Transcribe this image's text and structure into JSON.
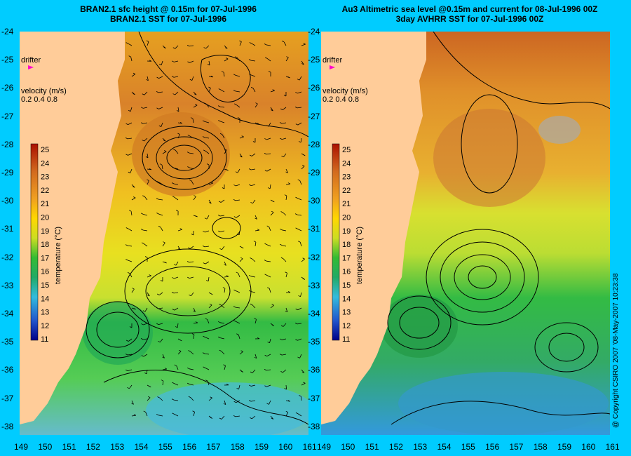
{
  "titles": {
    "left_line1": "BRAN2.1 sfc height @ 0.15m for 07-Jul-1996",
    "left_line2": "BRAN2.1 SST for 07-Jul-1996",
    "right_line1": "Au3 Altimetric sea level  @0.15m and current for 08-Jul-1996 00Z",
    "right_line2": "3day AVHRR SST for 07-Jul-1996 00Z"
  },
  "legend": {
    "drifter_label": "drifter",
    "velocity_title": "velocity (m/s)",
    "velocity_scale": "0.2 0.4 0.8",
    "colorbar_title": "temperature (°C)",
    "colorbar_ticks": [
      "25",
      "24",
      "23",
      "22",
      "21",
      "20",
      "19",
      "18",
      "17",
      "16",
      "15",
      "14",
      "13",
      "12",
      "11"
    ]
  },
  "axes": {
    "lat_ticks": [
      "-24",
      "-25",
      "-26",
      "-27",
      "-28",
      "-29",
      "-30",
      "-31",
      "-32",
      "-33",
      "-34",
      "-35",
      "-36",
      "-37",
      "-38"
    ],
    "lon_ticks_left": [
      "149",
      "150",
      "151",
      "152",
      "153",
      "154",
      "155",
      "156",
      "157",
      "158",
      "159",
      "160",
      "161"
    ],
    "lon_ticks_right": [
      "149",
      "150",
      "151",
      "152",
      "153",
      "154",
      "155",
      "156",
      "157",
      "158",
      "159",
      "160",
      "161"
    ]
  },
  "colors": {
    "background": "#00ccff",
    "land": "#ffcc99",
    "warm": "#d2691e",
    "mid": "#ffd700",
    "cool": "#22bb44",
    "cold": "#33aadd"
  },
  "copyright": "@ Copyright CSIRO 2007 '08-May-2007 10:23:38"
}
